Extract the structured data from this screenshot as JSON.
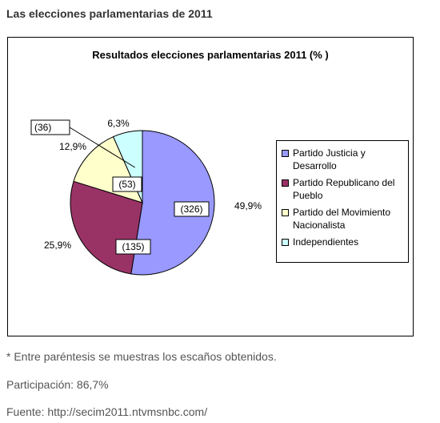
{
  "page": {
    "heading": "Las elecciones parlamentarias de 2011",
    "note": "* Entre paréntesis se muestras los escaños obtenidos.",
    "participation": "Participación: 86,7%",
    "source": "Fuente: http://secim2011.ntvmsnbc.com/"
  },
  "chart_data": {
    "type": "pie",
    "title": "Resultados elecciones parlamentarias 2011 (% )",
    "legend_position": "right",
    "slices": [
      {
        "name": "Partido Justicia y Desarrollo",
        "name_lines": [
          "Partido Justicia y",
          "Desarrollo"
        ],
        "value": 49.9,
        "value_label": "49,9%",
        "seats": 326,
        "seats_label": "(326)",
        "color": "#9999ff"
      },
      {
        "name": "Partido Republicano del Pueblo",
        "name_lines": [
          "Partido Republicano del",
          "Pueblo"
        ],
        "value": 25.9,
        "value_label": "25,9%",
        "seats": 135,
        "seats_label": "(135)",
        "color": "#993366"
      },
      {
        "name": "Partido del Movimiento Nacionalista",
        "name_lines": [
          "Partido del Movimiento",
          "Nacionalista"
        ],
        "value": 12.9,
        "value_label": "12,9%",
        "seats": 53,
        "seats_label": "(53)",
        "color": "#ffffcc"
      },
      {
        "name": "Independientes",
        "name_lines": [
          "Independientes"
        ],
        "value": 6.3,
        "value_label": "6,3%",
        "seats": 36,
        "seats_label": "(36)",
        "color": "#ccffff"
      }
    ]
  }
}
